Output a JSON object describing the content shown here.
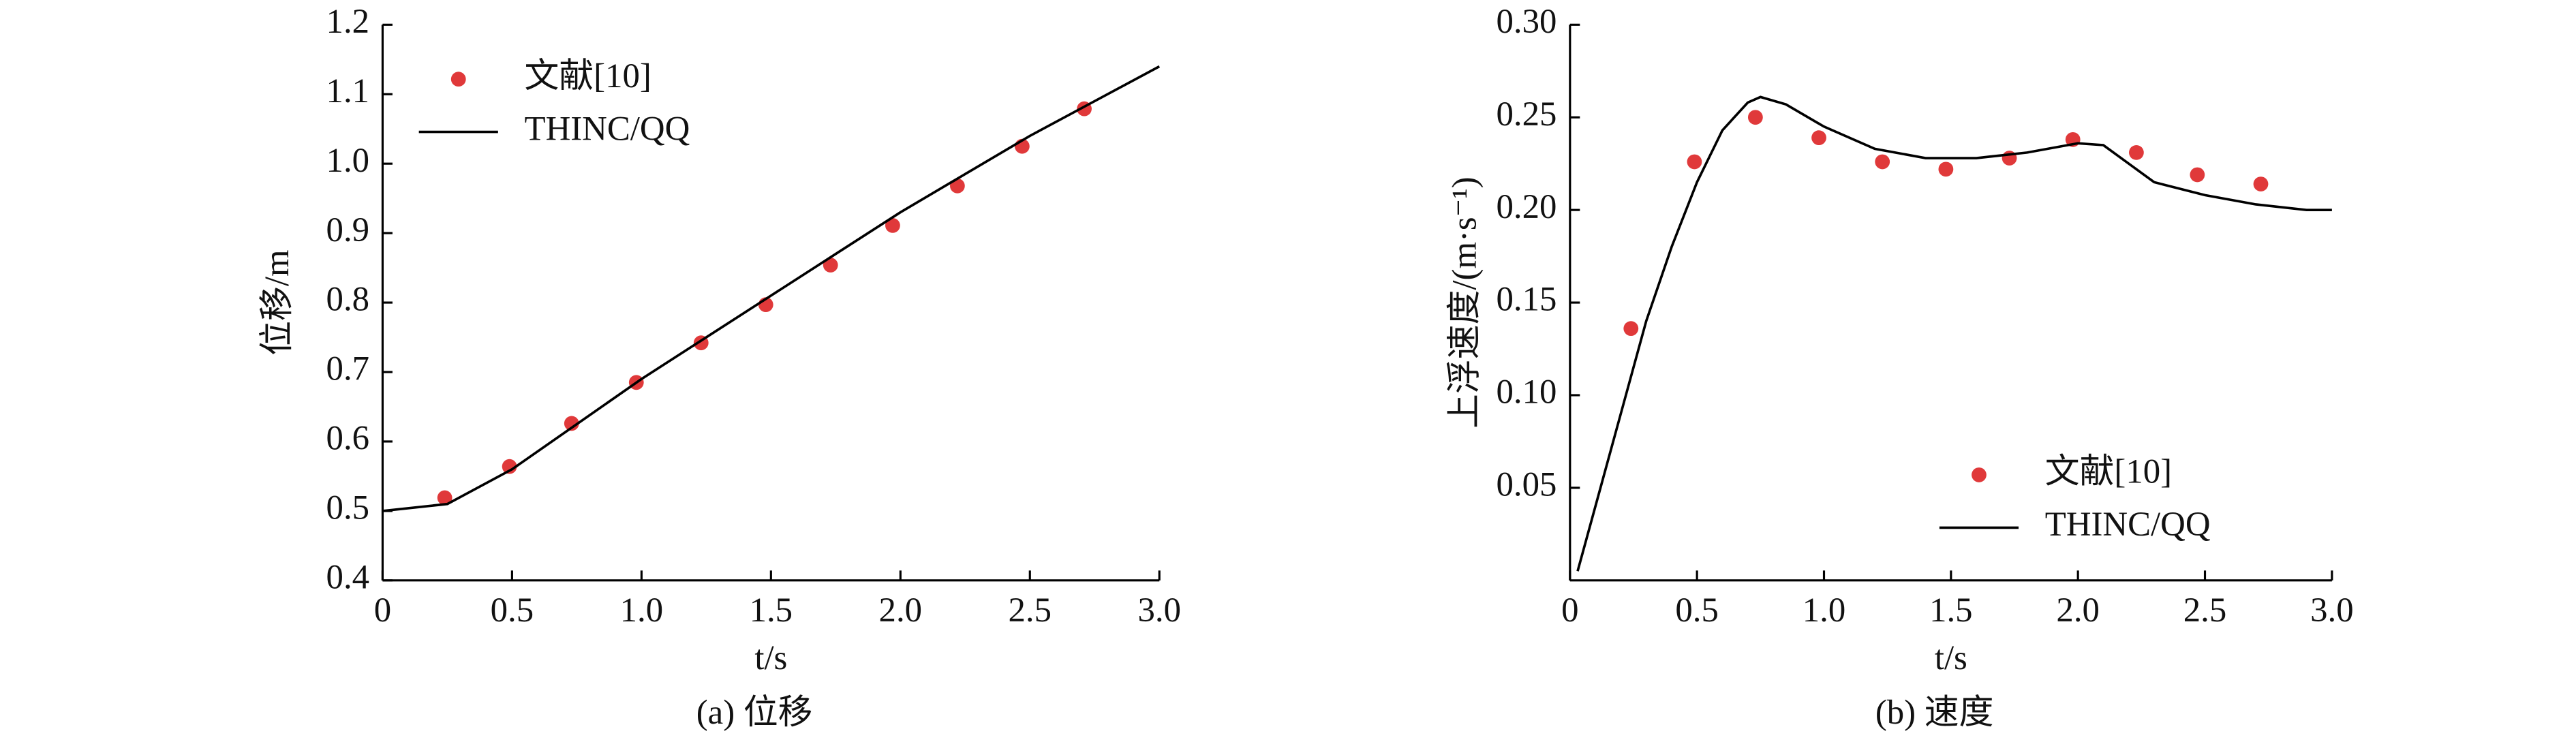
{
  "chart_data": [
    {
      "type": "line",
      "xlabel": "t/s",
      "ylabel": "位移/m",
      "caption": "(a) 位移",
      "legend": "upper left",
      "xlim": [
        0,
        3
      ],
      "ylim": [
        0.4,
        1.2
      ],
      "xticks": [
        0,
        0.5,
        {
          "value": 1,
          "label": "1.0"
        },
        1.5,
        {
          "value": 2,
          "label": "2.0"
        },
        2.5,
        {
          "value": 3,
          "label": "3.0"
        }
      ],
      "yticks": [
        0.4,
        0.5,
        0.6,
        0.7,
        0.8,
        0.9,
        {
          "value": 1,
          "label": "1.0"
        },
        1.1,
        1.2
      ],
      "series": [
        {
          "name": "文献[10]",
          "color": "#e0393a",
          "style": "markers",
          "x": [
            0.24,
            0.49,
            0.73,
            0.98,
            1.23,
            1.48,
            1.73,
            1.97,
            2.22,
            2.47,
            2.71
          ],
          "values": [
            0.519,
            0.564,
            0.626,
            0.685,
            0.742,
            0.797,
            0.854,
            0.911,
            0.968,
            1.025,
            1.079
          ]
        },
        {
          "name": "THINC/QQ",
          "color": "#000000",
          "style": "line",
          "x": [
            0,
            0.25,
            0.5,
            0.75,
            1.0,
            1.25,
            1.5,
            1.75,
            2.0,
            2.25,
            2.5,
            2.75,
            3.0
          ],
          "values": [
            0.5,
            0.51,
            0.56,
            0.625,
            0.69,
            0.75,
            0.81,
            0.87,
            0.93,
            0.985,
            1.04,
            1.09,
            1.14
          ]
        }
      ]
    },
    {
      "type": "line",
      "xlabel": "t/s",
      "ylabel": "上浮速度/(m·s⁻¹)",
      "caption": "(b) 速度",
      "legend": "lower right",
      "xlim": [
        0,
        3
      ],
      "ylim": [
        0,
        0.3
      ],
      "xticks": [
        0,
        0.5,
        {
          "value": 1,
          "label": "1.0"
        },
        1.5,
        {
          "value": 2,
          "label": "2.0"
        },
        2.5,
        {
          "value": 3,
          "label": "3.0"
        }
      ],
      "yticks": [
        0.05,
        {
          "value": 0.1,
          "label": "0.10"
        },
        0.15,
        {
          "value": 0.2,
          "label": "0.20"
        },
        0.25,
        {
          "value": 0.3,
          "label": "0.30"
        }
      ],
      "series": [
        {
          "name": "文献[10]",
          "color": "#e0393a",
          "style": "markers",
          "x": [
            0.24,
            0.49,
            0.73,
            0.98,
            1.23,
            1.48,
            1.73,
            1.98,
            2.23,
            2.47,
            2.72
          ],
          "values": [
            0.136,
            0.226,
            0.25,
            0.239,
            0.226,
            0.222,
            0.228,
            0.238,
            0.231,
            0.219,
            0.214
          ]
        },
        {
          "name": "THINC/QQ",
          "color": "#000000",
          "style": "line",
          "x": [
            0.03,
            0.1,
            0.2,
            0.3,
            0.4,
            0.5,
            0.6,
            0.7,
            0.75,
            0.85,
            1.0,
            1.2,
            1.4,
            1.6,
            1.8,
            2.0,
            2.1,
            2.2,
            2.3,
            2.5,
            2.7,
            2.9,
            3.0
          ],
          "values": [
            0.005,
            0.04,
            0.09,
            0.14,
            0.18,
            0.215,
            0.243,
            0.258,
            0.261,
            0.257,
            0.245,
            0.233,
            0.228,
            0.228,
            0.231,
            0.236,
            0.235,
            0.225,
            0.215,
            0.208,
            0.203,
            0.2,
            0.2
          ]
        }
      ]
    }
  ]
}
